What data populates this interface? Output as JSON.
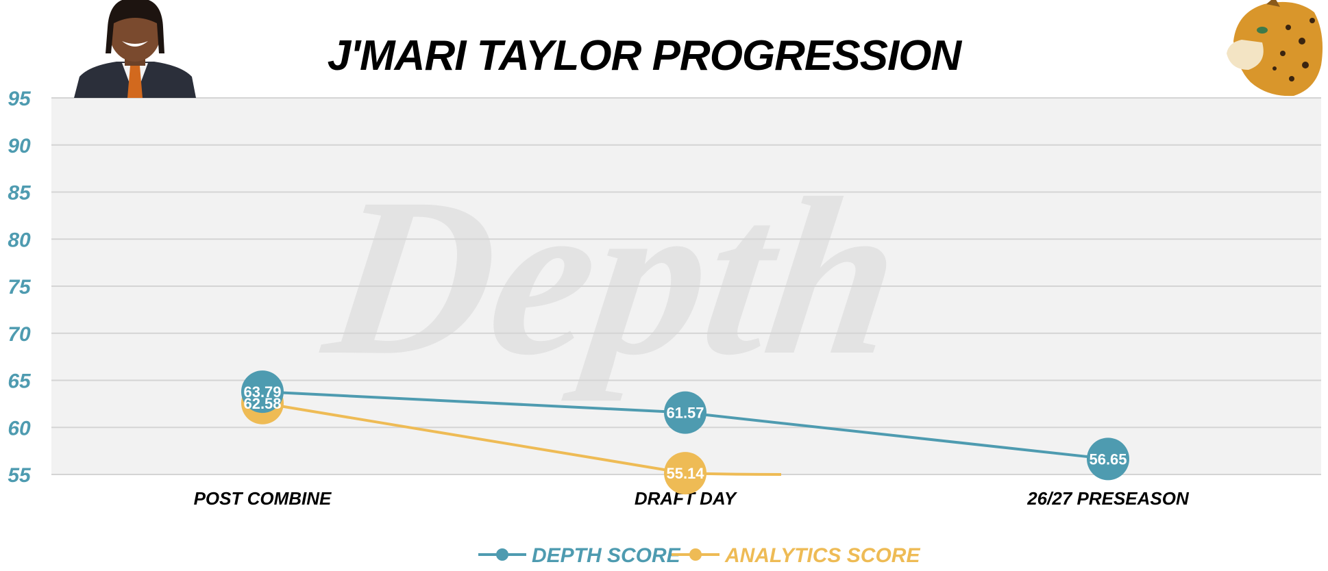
{
  "chart_data": {
    "type": "line",
    "title": "J'MARI TAYLOR PROGRESSION",
    "watermark": "Depth",
    "categories": [
      "POST COMBINE",
      "DRAFT DAY",
      "26/27 PRESEASON"
    ],
    "ylim": [
      55,
      95
    ],
    "yticks": [
      95,
      90,
      85,
      80,
      75,
      70,
      65,
      60,
      55
    ],
    "grid": true,
    "legend_position": "bottom-center",
    "series": [
      {
        "name": "DEPTH SCORE",
        "color": "#4e9bb0",
        "values": [
          63.79,
          61.57,
          56.65
        ],
        "labels": [
          "63.79",
          "61.57",
          "56.65"
        ]
      },
      {
        "name": "ANALYTICS SCORE",
        "color": "#eebb55",
        "values": [
          62.58,
          55.14,
          null
        ],
        "labels": [
          "62.58",
          "55.14",
          ""
        ]
      }
    ],
    "colors": {
      "plot_background": "#f2f2f2",
      "gridline": "#d4d4d4",
      "axis_text": "#4e9bb0"
    }
  }
}
